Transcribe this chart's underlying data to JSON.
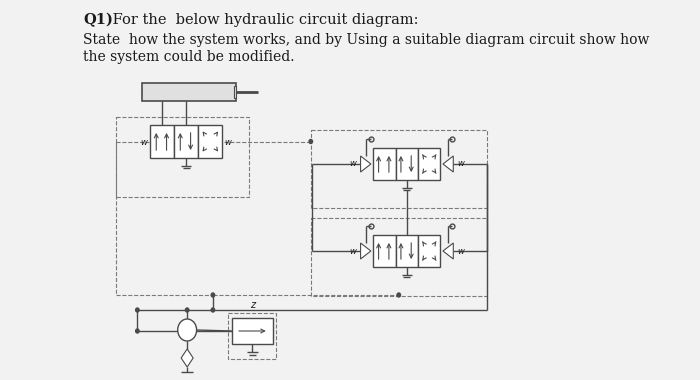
{
  "title_bold": "Q1)",
  "title_rest": " For the  below hydraulic circuit diagram:",
  "body_line1": "State  how the system works, and by Using a suitable diagram circuit show how",
  "body_line2": "the system could be modified.",
  "bg_color": "#f2f2f2",
  "line_color": "#4a4a4a",
  "dashed_color": "#7a7a7a",
  "text_color": "#1a1a1a",
  "valve_fill": "#ffffff",
  "valve_stroke": "#4a4a4a",
  "cyl_fill": "#e0e0e0"
}
